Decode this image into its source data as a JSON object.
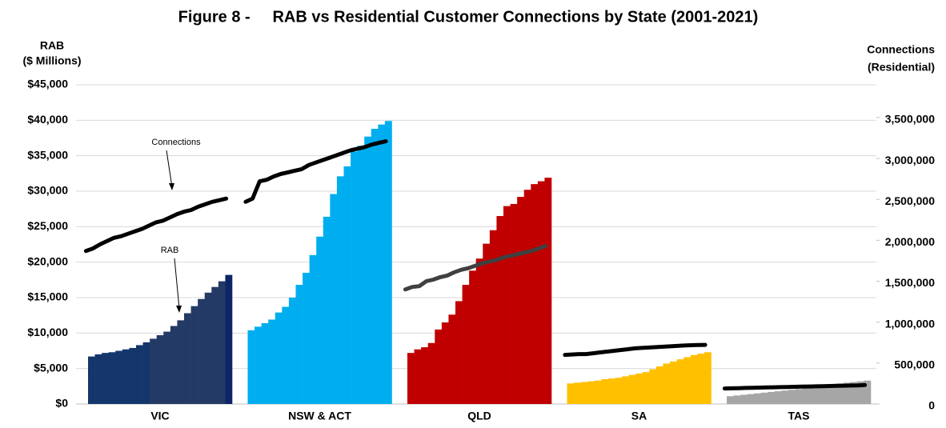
{
  "chart_data": {
    "type": "grouped-bar-line",
    "title": "Figure 8 -     RAB vs Residential Customer Connections by State (2001-2021)",
    "ylabel": [
      "RAB",
      "($ Millions)"
    ],
    "y2label": [
      "Connections",
      "(Residential)"
    ],
    "annotations": [
      "Connections",
      "RAB"
    ],
    "ylim": [
      0,
      45000
    ],
    "yticks": [
      {
        "value": 0,
        "label": "$0"
      },
      {
        "value": 5000,
        "label": "$5,000"
      },
      {
        "value": 10000,
        "label": "$10,000"
      },
      {
        "value": 15000,
        "label": "$15,000"
      },
      {
        "value": 20000,
        "label": "$20,000"
      },
      {
        "value": 25000,
        "label": "$25,000"
      },
      {
        "value": 30000,
        "label": "$30,000"
      },
      {
        "value": 35000,
        "label": "$35,000"
      },
      {
        "value": 40000,
        "label": "$40,000"
      },
      {
        "value": 45000,
        "label": "$45,000"
      }
    ],
    "y2lim": [
      0,
      3900000
    ],
    "y2ticks": [
      0,
      {
        "value": 500000,
        "label": "500,000"
      },
      {
        "value": 1000000,
        "label": "1,000,000"
      },
      {
        "value": 1500000,
        "label": "1,500,000"
      },
      {
        "value": 2000000,
        "label": "2,000,000"
      },
      {
        "value": 2500000,
        "label": "2,500,000"
      },
      {
        "value": 3000000,
        "label": "3,000,000"
      },
      {
        "value": 3500000,
        "label": "3,500,000"
      }
    ],
    "grid": true,
    "groups": [
      {
        "category": "VIC",
        "colors": [
          "#14366b",
          "#14366b",
          "#14366b",
          "#14366b",
          "#14366b",
          "#14366b",
          "#14366b",
          "#14366b",
          "#14366b",
          "#243a66",
          "#243a66",
          "#243a66",
          "#243a66",
          "#243a66",
          "#243a66",
          "#243a66",
          "#243a66",
          "#243a66",
          "#243a66",
          "#243a66",
          "#0d2566"
        ],
        "line_color": "#000000",
        "values": [
          6700,
          7000,
          7200,
          7300,
          7500,
          7700,
          7900,
          8300,
          8700,
          9200,
          9700,
          10200,
          11000,
          11800,
          12800,
          13800,
          14800,
          15700,
          16500,
          17300,
          18200
        ],
        "connections": [
          1870000,
          1900000,
          1950000,
          1990000,
          2030000,
          2050000,
          2080000,
          2110000,
          2140000,
          2180000,
          2220000,
          2240000,
          2280000,
          2320000,
          2350000,
          2370000,
          2410000,
          2440000,
          2470000,
          2490000,
          2510000
        ]
      },
      {
        "category": "NSW & ACT",
        "color": "#00aeef",
        "line_color": "#000000",
        "values": [
          10400,
          10900,
          11400,
          11900,
          12900,
          13700,
          15000,
          16800,
          18500,
          21000,
          23600,
          26400,
          29600,
          32100,
          33500,
          35600,
          36400,
          37700,
          38800,
          39400,
          39900
        ],
        "connections": [
          2470000,
          2510000,
          2720000,
          2740000,
          2780000,
          2810000,
          2830000,
          2850000,
          2870000,
          2920000,
          2950000,
          2980000,
          3010000,
          3040000,
          3070000,
          3100000,
          3120000,
          3140000,
          3170000,
          3190000,
          3210000
        ]
      },
      {
        "category": "QLD",
        "color": "#c00000",
        "line_color": "#404040",
        "values": [
          7200,
          7700,
          8000,
          8600,
          10500,
          11500,
          12600,
          14500,
          16800,
          18800,
          20500,
          22600,
          24500,
          26500,
          27900,
          28200,
          29200,
          30200,
          31000,
          31400,
          31900
        ],
        "connections": [
          1400000,
          1430000,
          1440000,
          1500000,
          1520000,
          1550000,
          1570000,
          1610000,
          1640000,
          1660000,
          1690000,
          1720000,
          1740000,
          1760000,
          1790000,
          1810000,
          1830000,
          1850000,
          1870000,
          1900000,
          1930000
        ]
      },
      {
        "category": "SA",
        "color": "#ffc000",
        "line_color": "#000000",
        "values": [
          2900,
          3000,
          3100,
          3200,
          3300,
          3500,
          3600,
          3700,
          3900,
          4100,
          4300,
          4500,
          4900,
          5300,
          5700,
          6000,
          6300,
          6600,
          6900,
          7100,
          7300
        ],
        "connections": [
          600000,
          605000,
          610000,
          610000,
          620000,
          630000,
          640000,
          650000,
          660000,
          670000,
          680000,
          685000,
          690000,
          695000,
          700000,
          705000,
          710000,
          715000,
          718000,
          720000,
          722000
        ]
      },
      {
        "category": "TAS",
        "color": "#a6a6a6",
        "line_color": "#000000",
        "values": [
          1100,
          1200,
          1300,
          1400,
          1500,
          1600,
          1700,
          1800,
          1900,
          2000,
          2100,
          2200,
          2400,
          2600,
          2700,
          2800,
          2900,
          3000,
          3100,
          3200,
          3300
        ],
        "connections": [
          190000,
          192000,
          194000,
          196000,
          198000,
          200000,
          202000,
          204000,
          206000,
          208000,
          210000,
          212000,
          214000,
          216000,
          218000,
          220000,
          222000,
          224000,
          226000,
          228000,
          232000
        ]
      }
    ]
  }
}
